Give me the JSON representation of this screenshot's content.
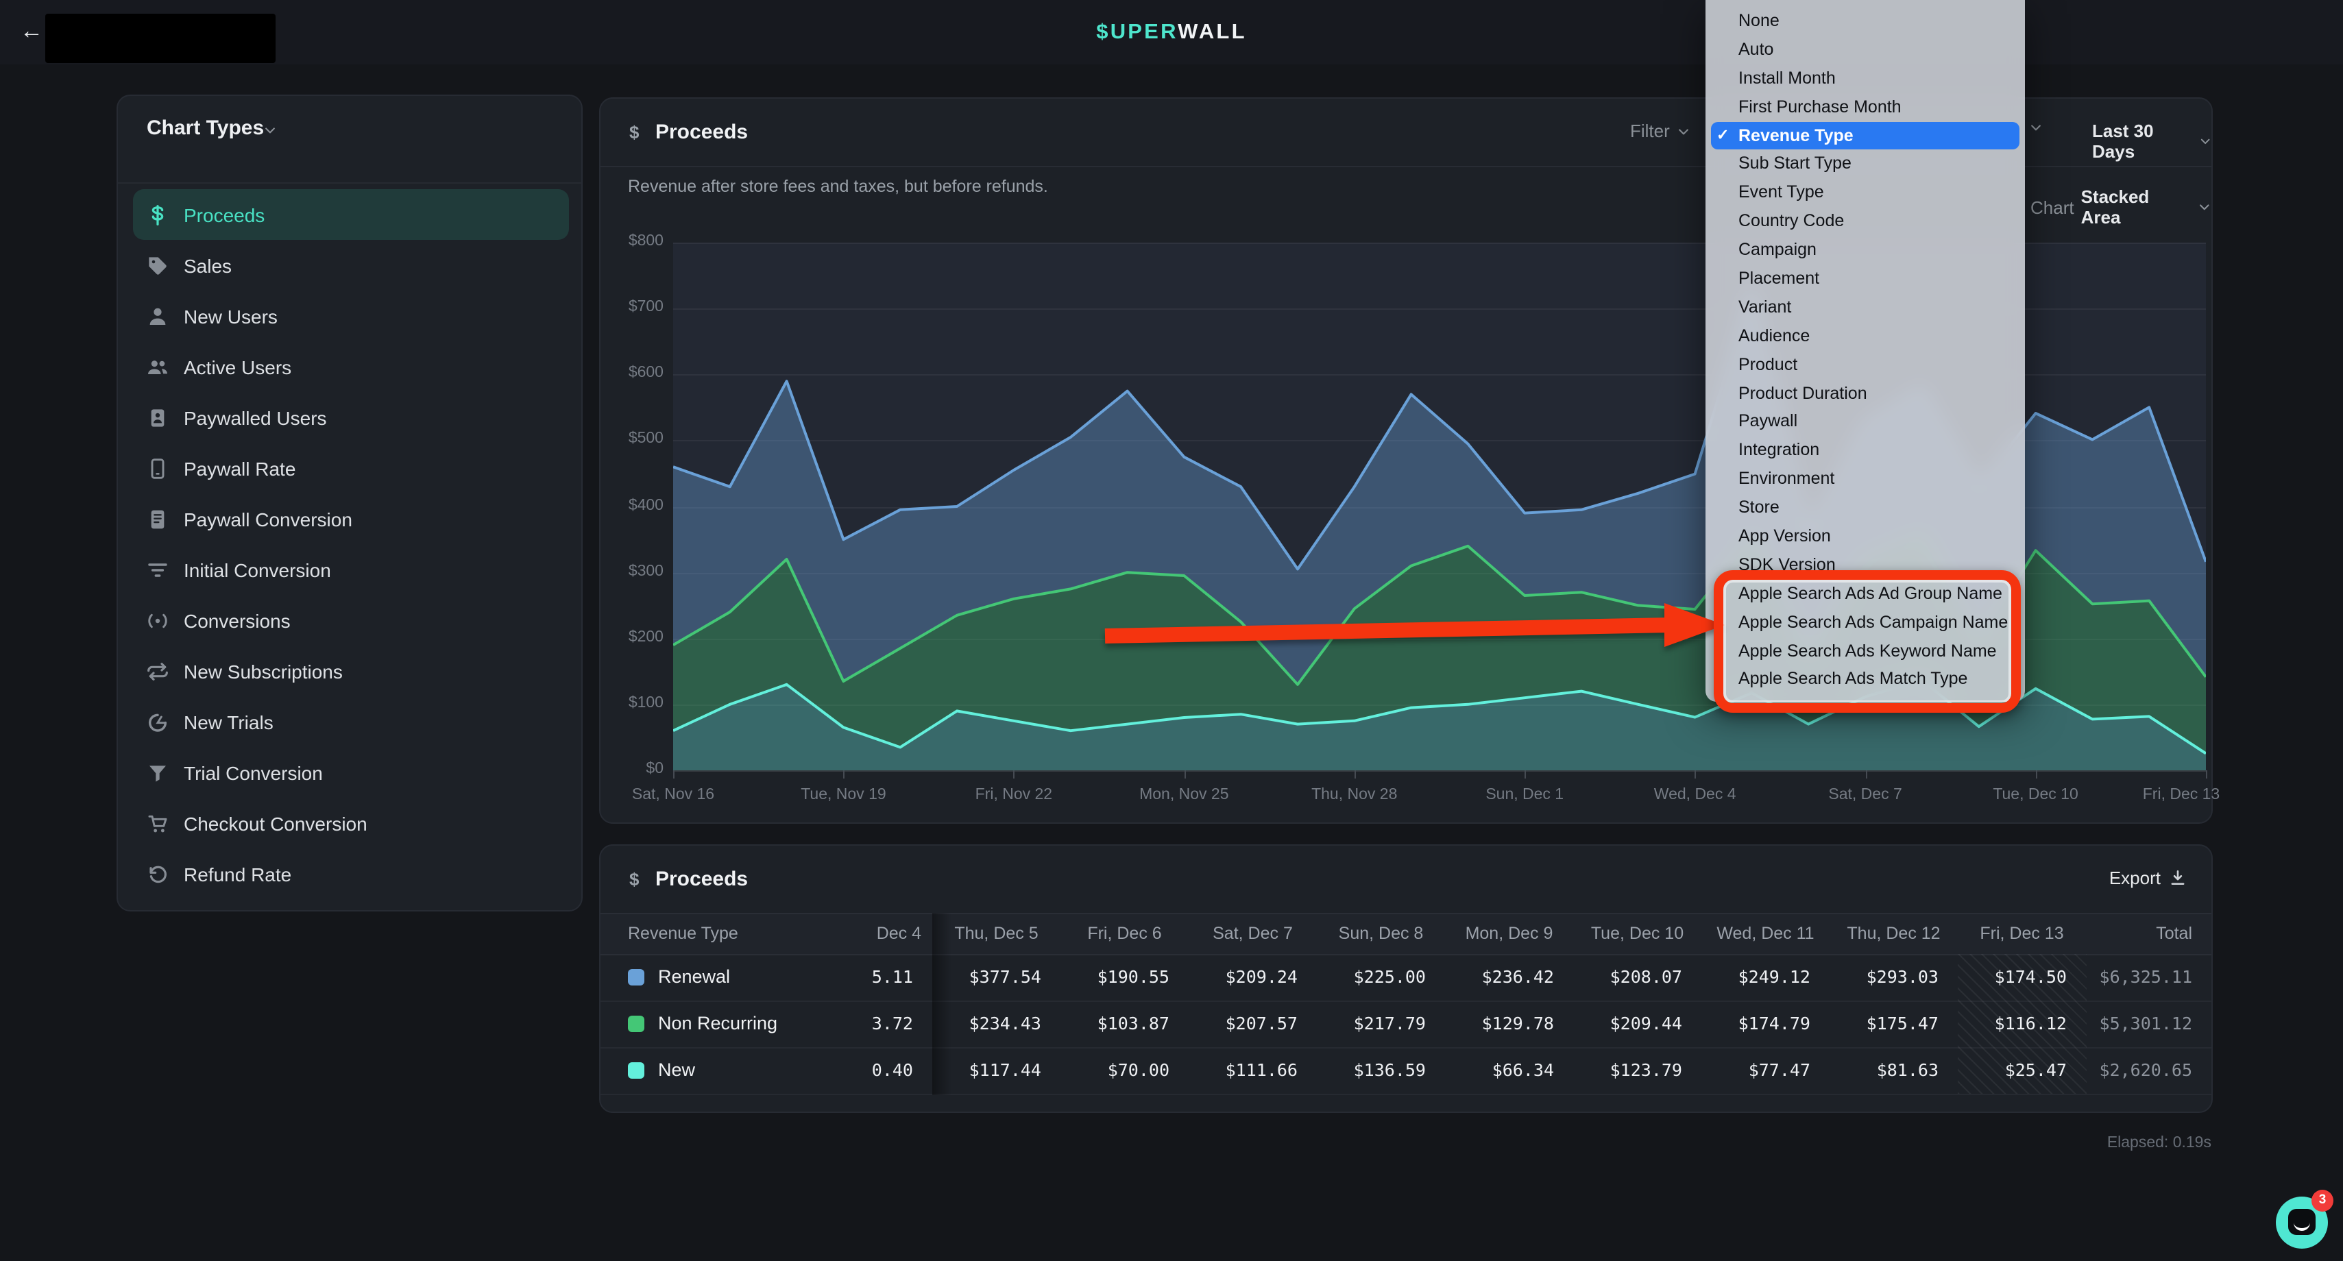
{
  "top_bar": {
    "back_icon": "arrow-left-icon",
    "logo_prefix": "$UPER",
    "logo_suffix": "WALL"
  },
  "sidebar": {
    "title": "Chart Types",
    "items": [
      {
        "label": "Proceeds",
        "icon": "dollar-icon",
        "active": true
      },
      {
        "label": "Sales",
        "icon": "tag-icon",
        "active": false
      },
      {
        "label": "New Users",
        "icon": "user-icon",
        "active": false
      },
      {
        "label": "Active Users",
        "icon": "users-icon",
        "active": false
      },
      {
        "label": "Paywalled Users",
        "icon": "id-card-icon",
        "active": false
      },
      {
        "label": "Paywall Rate",
        "icon": "smartphone-icon",
        "active": false
      },
      {
        "label": "Paywall Conversion",
        "icon": "file-text-icon",
        "active": false
      },
      {
        "label": "Initial Conversion",
        "icon": "filter-lines-icon",
        "active": false
      },
      {
        "label": "Conversions",
        "icon": "broadcast-icon",
        "active": false
      },
      {
        "label": "New Subscriptions",
        "icon": "repeat-icon",
        "active": false
      },
      {
        "label": "New Trials",
        "icon": "timer-icon",
        "active": false
      },
      {
        "label": "Trial Conversion",
        "icon": "funnel-icon",
        "active": false
      },
      {
        "label": "Checkout Conversion",
        "icon": "cart-icon",
        "active": false
      },
      {
        "label": "Refund Rate",
        "icon": "rotate-ccw-icon",
        "active": false
      }
    ]
  },
  "chart_panel": {
    "title": "Proceeds",
    "title_icon": "dollar-icon",
    "subtitle": "Revenue after store fees and taxes, but before refunds.",
    "filter_label": "Filter",
    "date_range_label": "Last 30 Days",
    "chart_type_label": "Chart",
    "chart_type_value": "Stacked Area"
  },
  "dropdown_menu": {
    "items": [
      "None",
      "Auto",
      "Install Month",
      "First Purchase Month",
      "Revenue Type",
      "Sub Start Type",
      "Event Type",
      "Country Code",
      "Campaign",
      "Placement",
      "Variant",
      "Audience",
      "Product",
      "Product Duration",
      "Paywall",
      "Integration",
      "Environment",
      "Store",
      "App Version",
      "SDK Version",
      "Apple Search Ads Ad Group Name",
      "Apple Search Ads Campaign Name",
      "Apple Search Ads Keyword Name",
      "Apple Search Ads Match Type"
    ],
    "selected_index": 4,
    "selected_item": "Revenue Type",
    "checkmark": "✓",
    "selected_color": "#2979f2",
    "annotated_items": [
      "Apple Search Ads Ad Group Name",
      "Apple Search Ads Campaign Name",
      "Apple Search Ads Keyword Name",
      "Apple Search Ads Match Type"
    ]
  },
  "annotation": {
    "color": "#f5340f",
    "shape": "red arrow pointing to red rounded box around Apple Search Ads menu items"
  },
  "chart_data": {
    "type": "area",
    "stacked": true,
    "title": "Proceeds",
    "ylim": [
      0,
      800
    ],
    "y_ticks": [
      "$0",
      "$100",
      "$200",
      "$300",
      "$400",
      "$500",
      "$600",
      "$700",
      "$800"
    ],
    "x_dates": [
      "Sat, Nov 16",
      "Sun, Nov 17",
      "Mon, Nov 18",
      "Tue, Nov 19",
      "Wed, Nov 20",
      "Thu, Nov 21",
      "Fri, Nov 22",
      "Sat, Nov 23",
      "Sun, Nov 24",
      "Mon, Nov 25",
      "Tue, Nov 26",
      "Wed, Nov 27",
      "Thu, Nov 28",
      "Fri, Nov 29",
      "Sat, Nov 30",
      "Sun, Dec 1",
      "Mon, Dec 2",
      "Tue, Dec 3",
      "Wed, Dec 4",
      "Thu, Dec 5",
      "Fri, Dec 6",
      "Sat, Dec 7",
      "Sun, Dec 8",
      "Mon, Dec 9",
      "Tue, Dec 10",
      "Wed, Dec 11",
      "Thu, Dec 12",
      "Fri, Dec 13"
    ],
    "x_tick_label_indices": [
      0,
      3,
      6,
      9,
      12,
      15,
      18,
      21,
      24,
      27
    ],
    "x_tick_labels": [
      "Sat, Nov 16",
      "Tue, Nov 19",
      "Fri, Nov 22",
      "Mon, Nov 25",
      "Thu, Nov 28",
      "Sun, Dec 1",
      "Wed, Dec 4",
      "Sat, Dec 7",
      "Tue, Dec 10",
      "Fri, Dec 13"
    ],
    "grid": true,
    "series": [
      {
        "name": "New",
        "stroke": "#63f0dc",
        "fill": "rgba(99,240,220,0.33)",
        "values": [
          60,
          100,
          130,
          65,
          35,
          90,
          75,
          60,
          70,
          80,
          85,
          70,
          75,
          95,
          100,
          110,
          120,
          100,
          80.4,
          117.44,
          70.0,
          111.66,
          136.59,
          66.34,
          123.79,
          77.47,
          81.63,
          25.47
        ]
      },
      {
        "name": "Non Recurring",
        "stroke": "#44c776",
        "fill": "rgba(68,199,118,0.35)",
        "values": [
          130,
          140,
          190,
          70,
          150,
          145,
          185,
          215,
          230,
          215,
          140,
          60,
          170,
          215,
          240,
          155,
          150,
          150,
          163.72,
          234.43,
          103.87,
          207.57,
          217.79,
          129.78,
          209.44,
          174.79,
          175.47,
          116.12
        ]
      },
      {
        "name": "Renewal",
        "stroke": "#6aa1d8",
        "fill": "rgba(106,161,216,0.38)",
        "values": [
          270,
          190,
          270,
          215,
          210,
          165,
          195,
          230,
          275,
          180,
          205,
          175,
          185,
          260,
          155,
          125,
          125,
          170,
          205.11,
          377.54,
          190.55,
          209.24,
          225.0,
          236.42,
          208.07,
          249.12,
          293.03,
          174.5
        ]
      }
    ]
  },
  "table_panel": {
    "title": "Proceeds",
    "title_icon": "dollar-icon",
    "export_label": "Export",
    "export_icon": "download-icon",
    "first_column": "Revenue Type",
    "clipped_column": "Dec 4",
    "columns": [
      "Thu, Dec 5",
      "Fri, Dec 6",
      "Sat, Dec 7",
      "Sun, Dec 8",
      "Mon, Dec 9",
      "Tue, Dec 10",
      "Wed, Dec 11",
      "Thu, Dec 12",
      "Fri, Dec 13"
    ],
    "total_column": "Total",
    "rows": [
      {
        "label": "Renewal",
        "swatch": "#6aa1d8",
        "clipped_value": "5.11",
        "values": [
          "$377.54",
          "$190.55",
          "$209.24",
          "$225.00",
          "$236.42",
          "$208.07",
          "$249.12",
          "$293.03",
          "$174.50"
        ],
        "total": "$6,325.11"
      },
      {
        "label": "Non Recurring",
        "swatch": "#44c776",
        "clipped_value": "3.72",
        "values": [
          "$234.43",
          "$103.87",
          "$207.57",
          "$217.79",
          "$129.78",
          "$209.44",
          "$174.79",
          "$175.47",
          "$116.12"
        ],
        "total": "$5,301.12"
      },
      {
        "label": "New",
        "swatch": "#63f0dc",
        "clipped_value": "0.40",
        "values": [
          "$117.44",
          "$70.00",
          "$111.66",
          "$136.59",
          "$66.34",
          "$123.79",
          "$77.47",
          "$81.63",
          "$25.47"
        ],
        "total": "$2,620.65"
      }
    ],
    "hatched_column": "Fri, Dec 13"
  },
  "footer": {
    "elapsed": "Elapsed: 0.19s",
    "chat_icon": "chat-bubble-icon",
    "chat_badge": "3"
  }
}
